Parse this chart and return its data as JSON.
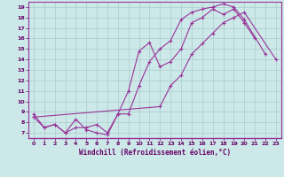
{
  "xlabel": "Windchill (Refroidissement éolien,°C)",
  "bg_color": "#cce8e8",
  "grid_color": "#aacccc",
  "line_color": "#993399",
  "xlim": [
    -0.5,
    23.5
  ],
  "ylim": [
    6.5,
    19.5
  ],
  "xticks": [
    0,
    1,
    2,
    3,
    4,
    5,
    6,
    7,
    8,
    9,
    10,
    11,
    12,
    13,
    14,
    15,
    16,
    17,
    18,
    19,
    20,
    21,
    22,
    23
  ],
  "yticks": [
    7,
    8,
    9,
    10,
    11,
    12,
    13,
    14,
    15,
    16,
    17,
    18,
    19
  ],
  "line1_x": [
    0,
    1,
    2,
    3,
    4,
    5,
    6,
    7,
    8,
    9,
    10,
    11,
    12,
    13,
    14,
    15,
    16,
    17,
    18,
    19,
    20,
    21
  ],
  "line1_y": [
    8.8,
    7.5,
    7.8,
    7.0,
    8.3,
    7.3,
    7.0,
    6.8,
    8.8,
    11.0,
    14.8,
    15.6,
    13.3,
    13.8,
    15.0,
    17.5,
    18.0,
    18.8,
    18.3,
    18.8,
    17.5,
    16.0
  ],
  "line2_x": [
    0,
    1,
    2,
    3,
    4,
    5,
    6,
    7,
    8,
    9,
    10,
    11,
    12,
    13,
    14,
    15,
    16,
    17,
    18,
    19,
    20,
    22
  ],
  "line2_y": [
    8.5,
    7.5,
    7.8,
    7.0,
    7.5,
    7.5,
    7.8,
    7.0,
    8.8,
    8.8,
    11.5,
    13.8,
    15.0,
    15.8,
    17.8,
    18.5,
    18.8,
    19.0,
    19.3,
    19.0,
    17.8,
    14.5
  ],
  "line3_x": [
    0,
    12,
    13,
    14,
    15,
    16,
    17,
    18,
    19,
    20,
    23
  ],
  "line3_y": [
    8.5,
    9.5,
    11.5,
    12.5,
    14.5,
    15.5,
    16.5,
    17.5,
    18.0,
    18.5,
    14.0
  ]
}
